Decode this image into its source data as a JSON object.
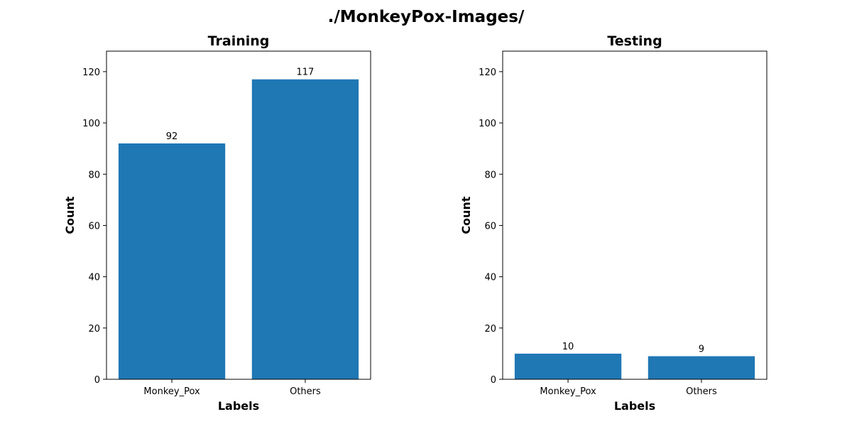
{
  "figure": {
    "suptitle": "./MonkeyPox-Images/"
  },
  "chart_data": [
    {
      "type": "bar",
      "title": "Training",
      "xlabel": "Labels",
      "ylabel": "Count",
      "categories": [
        "Monkey_Pox",
        "Others"
      ],
      "values": [
        92,
        117
      ],
      "data_labels": [
        "92",
        "117"
      ],
      "ylim": [
        0,
        128
      ],
      "yticks": [
        0,
        20,
        40,
        60,
        80,
        100,
        120
      ],
      "grid": false,
      "bar_color": "#1f77b4"
    },
    {
      "type": "bar",
      "title": "Testing",
      "xlabel": "Labels",
      "ylabel": "Count",
      "categories": [
        "Monkey_Pox",
        "Others"
      ],
      "values": [
        10,
        9
      ],
      "data_labels": [
        "10",
        "9"
      ],
      "ylim": [
        0,
        128
      ],
      "yticks": [
        0,
        20,
        40,
        60,
        80,
        100,
        120
      ],
      "grid": false,
      "bar_color": "#1f77b4"
    }
  ]
}
